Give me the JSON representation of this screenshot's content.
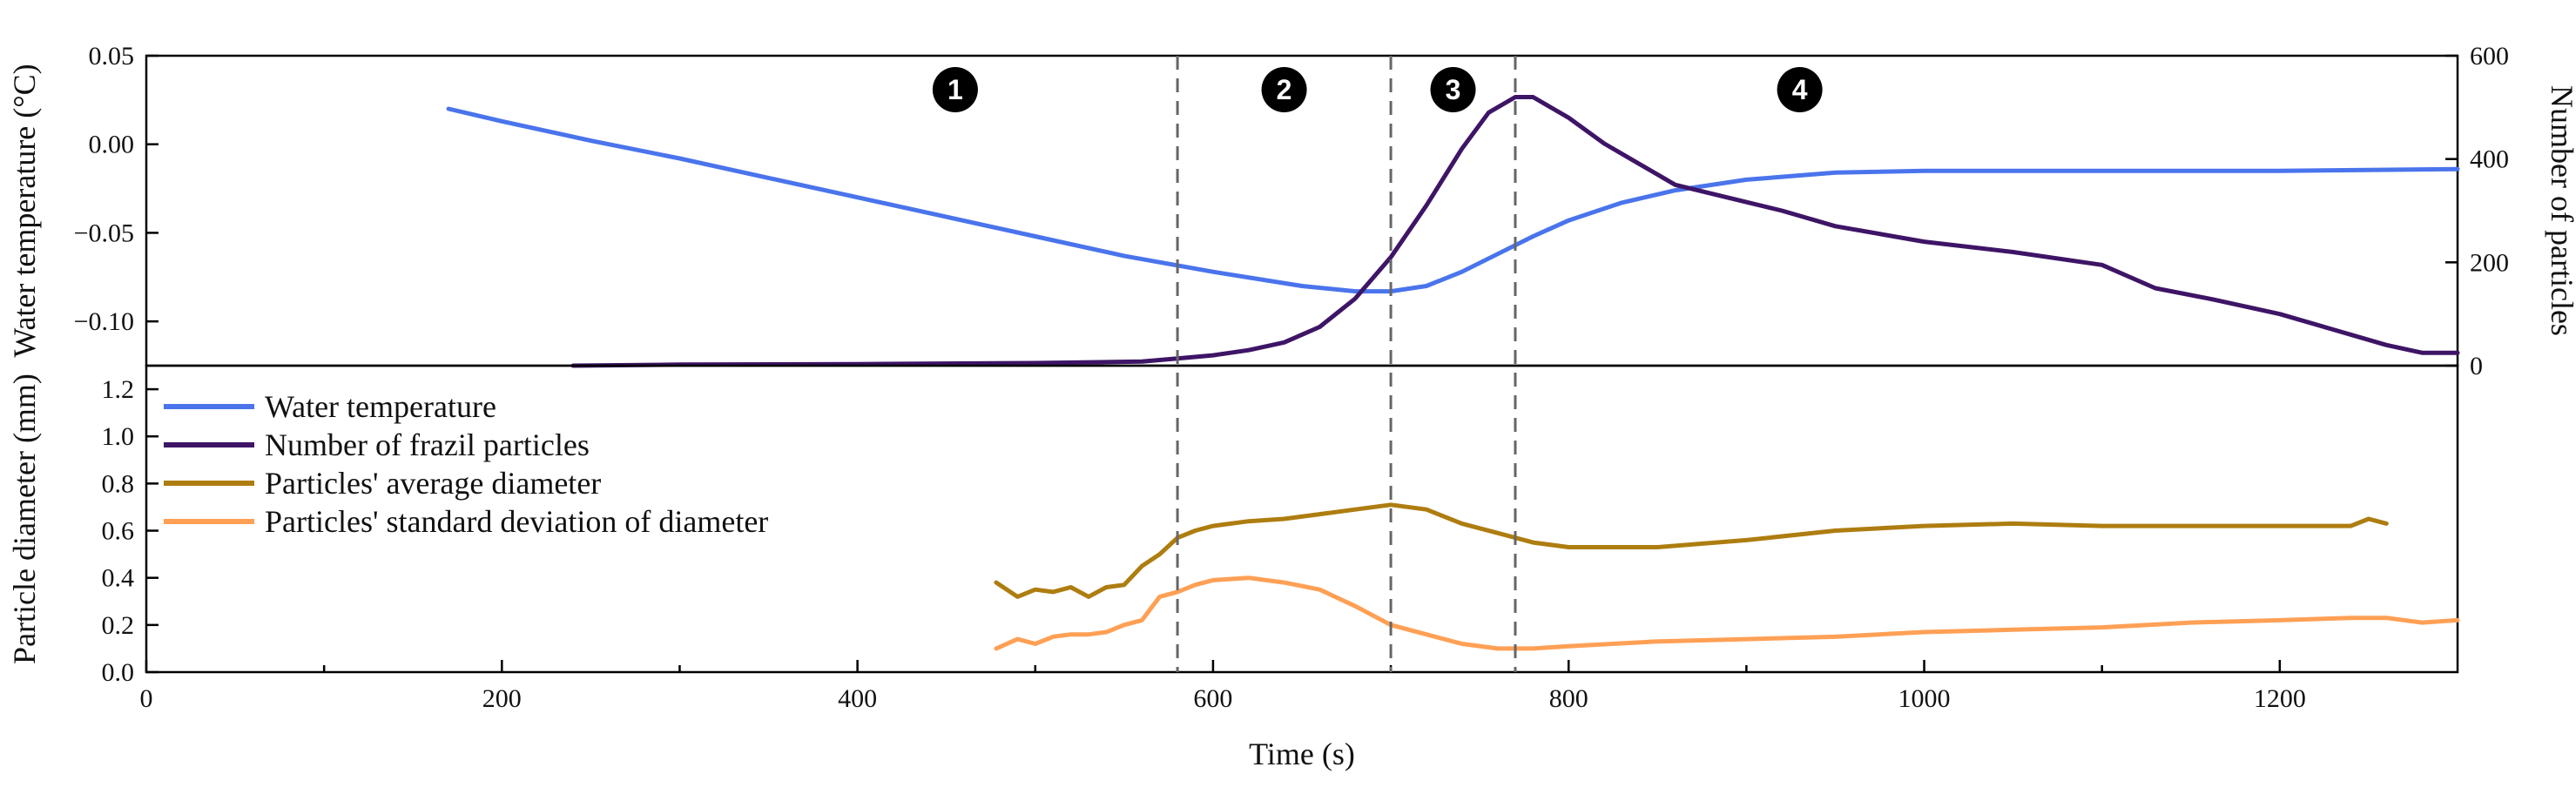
{
  "chart_data": [
    {
      "type": "line",
      "panel": "top",
      "xlabel": "Time (s)",
      "ylabel_left": "Water temperature (°C)",
      "ylabel_right": "Number of particles",
      "xlim": [
        0,
        1300
      ],
      "ylim_left": [
        -0.125,
        0.05
      ],
      "ylim_right": [
        0,
        600
      ],
      "yticks_left": [
        0.05,
        0.0,
        -0.05,
        -0.1
      ],
      "yticks_left_labels": [
        "0.05",
        "0.00",
        "−0.05",
        "−0.10"
      ],
      "yticks_right": [
        600,
        400,
        200,
        0
      ],
      "yticks_right_labels": [
        "600",
        "400",
        "200",
        "0"
      ],
      "phase_markers": [
        580,
        700,
        770
      ],
      "phase_labels": [
        {
          "text": "1",
          "x": 455
        },
        {
          "text": "2",
          "x": 640
        },
        {
          "text": "3",
          "x": 735
        },
        {
          "text": "4",
          "x": 930
        }
      ],
      "series": [
        {
          "name": "Water temperature",
          "axis": "left",
          "color": "#4A74EC",
          "x": [
            170,
            200,
            250,
            300,
            350,
            400,
            450,
            500,
            550,
            600,
            650,
            680,
            700,
            720,
            740,
            760,
            780,
            800,
            830,
            860,
            900,
            950,
            1000,
            1100,
            1200,
            1300
          ],
          "y": [
            0.02,
            0.013,
            0.002,
            -0.008,
            -0.019,
            -0.03,
            -0.041,
            -0.052,
            -0.063,
            -0.072,
            -0.08,
            -0.083,
            -0.083,
            -0.08,
            -0.072,
            -0.062,
            -0.052,
            -0.043,
            -0.033,
            -0.026,
            -0.02,
            -0.016,
            -0.015,
            -0.015,
            -0.015,
            -0.014
          ]
        },
        {
          "name": "Number of frazil particles",
          "axis": "right",
          "color": "#3E1566",
          "x": [
            240,
            300,
            400,
            500,
            560,
            580,
            600,
            620,
            640,
            660,
            680,
            700,
            720,
            740,
            755,
            770,
            780,
            800,
            820,
            835,
            860,
            890,
            920,
            950,
            1000,
            1050,
            1100,
            1130,
            1160,
            1200,
            1230,
            1260,
            1280,
            1300
          ],
          "y": [
            0,
            2,
            3,
            5,
            8,
            14,
            20,
            30,
            45,
            75,
            130,
            210,
            310,
            420,
            490,
            520,
            520,
            480,
            430,
            400,
            350,
            325,
            300,
            270,
            240,
            220,
            195,
            150,
            130,
            100,
            70,
            40,
            25,
            25
          ]
        }
      ]
    },
    {
      "type": "line",
      "panel": "bottom",
      "xlabel": "Time (s)",
      "ylabel": "Particle diameter (mm)",
      "xlim": [
        0,
        1300
      ],
      "ylim": [
        0,
        1.3
      ],
      "yticks": [
        0.0,
        0.2,
        0.4,
        0.6,
        0.8,
        1.0,
        1.2
      ],
      "yticks_labels": [
        "0.0",
        "0.2",
        "0.4",
        "0.6",
        "0.8",
        "1.0",
        "1.2"
      ],
      "xticks": [
        0,
        200,
        400,
        600,
        800,
        1000,
        1200
      ],
      "xticks_labels": [
        "0",
        "200",
        "400",
        "600",
        "800",
        "1000",
        "1200"
      ],
      "phase_markers": [
        580,
        700,
        770
      ],
      "series": [
        {
          "name": "Particles' average diameter",
          "color": "#AE7D10",
          "x": [
            478,
            490,
            500,
            510,
            520,
            530,
            540,
            550,
            560,
            570,
            580,
            590,
            600,
            620,
            640,
            660,
            680,
            700,
            720,
            740,
            760,
            780,
            800,
            850,
            900,
            950,
            1000,
            1050,
            1100,
            1150,
            1200,
            1240,
            1250,
            1260
          ],
          "y": [
            0.38,
            0.32,
            0.35,
            0.34,
            0.36,
            0.32,
            0.36,
            0.37,
            0.45,
            0.5,
            0.57,
            0.6,
            0.62,
            0.64,
            0.65,
            0.67,
            0.69,
            0.71,
            0.69,
            0.63,
            0.59,
            0.55,
            0.53,
            0.53,
            0.56,
            0.6,
            0.62,
            0.63,
            0.62,
            0.62,
            0.62,
            0.62,
            0.65,
            0.63
          ]
        },
        {
          "name": "Particles' standard deviation of diameter",
          "color": "#FFA055",
          "x": [
            478,
            490,
            500,
            510,
            520,
            530,
            540,
            550,
            560,
            570,
            580,
            590,
            600,
            620,
            640,
            660,
            680,
            700,
            720,
            740,
            760,
            780,
            800,
            850,
            900,
            950,
            1000,
            1050,
            1100,
            1150,
            1200,
            1240,
            1260,
            1280,
            1300
          ],
          "y": [
            0.1,
            0.14,
            0.12,
            0.15,
            0.16,
            0.16,
            0.17,
            0.2,
            0.22,
            0.32,
            0.34,
            0.37,
            0.39,
            0.4,
            0.38,
            0.35,
            0.28,
            0.2,
            0.16,
            0.12,
            0.1,
            0.1,
            0.11,
            0.13,
            0.14,
            0.15,
            0.17,
            0.18,
            0.19,
            0.21,
            0.22,
            0.23,
            0.23,
            0.21,
            0.22
          ]
        }
      ]
    }
  ],
  "legend": [
    {
      "label": "Water temperature",
      "color": "#4A74EC"
    },
    {
      "label": "Number of frazil particles",
      "color": "#3E1566"
    },
    {
      "label": "Particles' average diameter",
      "color": "#AE7D10"
    },
    {
      "label": "Particles' standard deviation of diameter",
      "color": "#FFA055"
    }
  ]
}
